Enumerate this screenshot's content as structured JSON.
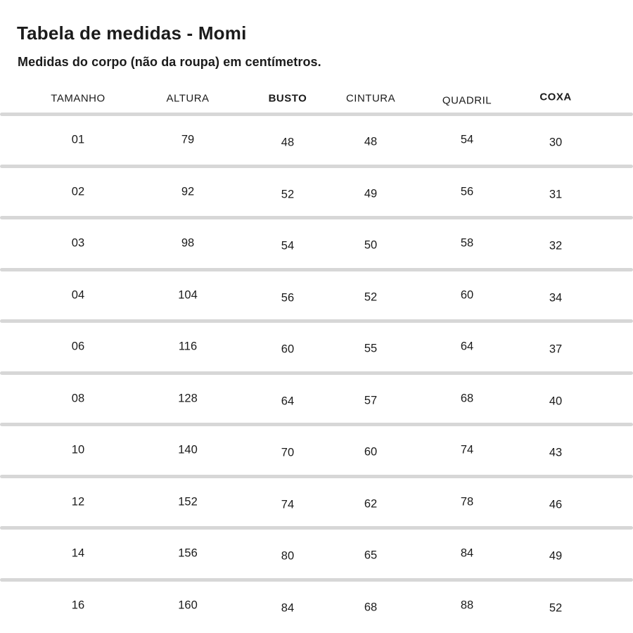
{
  "chart_data": {
    "type": "table",
    "title": "Tabela de medidas - Momi",
    "subtitle": "Medidas do corpo (não da roupa) em centímetros.",
    "columns": [
      "TAMANHO",
      "ALTURA",
      "BUSTO",
      "CINTURA",
      "QUADRIL",
      "COXA"
    ],
    "bold_columns": [
      "BUSTO",
      "COXA"
    ],
    "rows": [
      [
        "01",
        "79",
        "48",
        "48",
        "54",
        "30"
      ],
      [
        "02",
        "92",
        "52",
        "49",
        "56",
        "31"
      ],
      [
        "03",
        "98",
        "54",
        "50",
        "58",
        "32"
      ],
      [
        "04",
        "104",
        "56",
        "52",
        "60",
        "34"
      ],
      [
        "06",
        "116",
        "60",
        "55",
        "64",
        "37"
      ],
      [
        "08",
        "128",
        "64",
        "57",
        "68",
        "40"
      ],
      [
        "10",
        "140",
        "70",
        "60",
        "74",
        "43"
      ],
      [
        "12",
        "152",
        "74",
        "62",
        "78",
        "46"
      ],
      [
        "14",
        "156",
        "80",
        "65",
        "84",
        "49"
      ],
      [
        "16",
        "160",
        "84",
        "68",
        "88",
        "52"
      ]
    ],
    "units": "cm"
  },
  "colors": {
    "text": "#1b1b1b",
    "separator": "#d7d7d7",
    "background": "#ffffff"
  }
}
